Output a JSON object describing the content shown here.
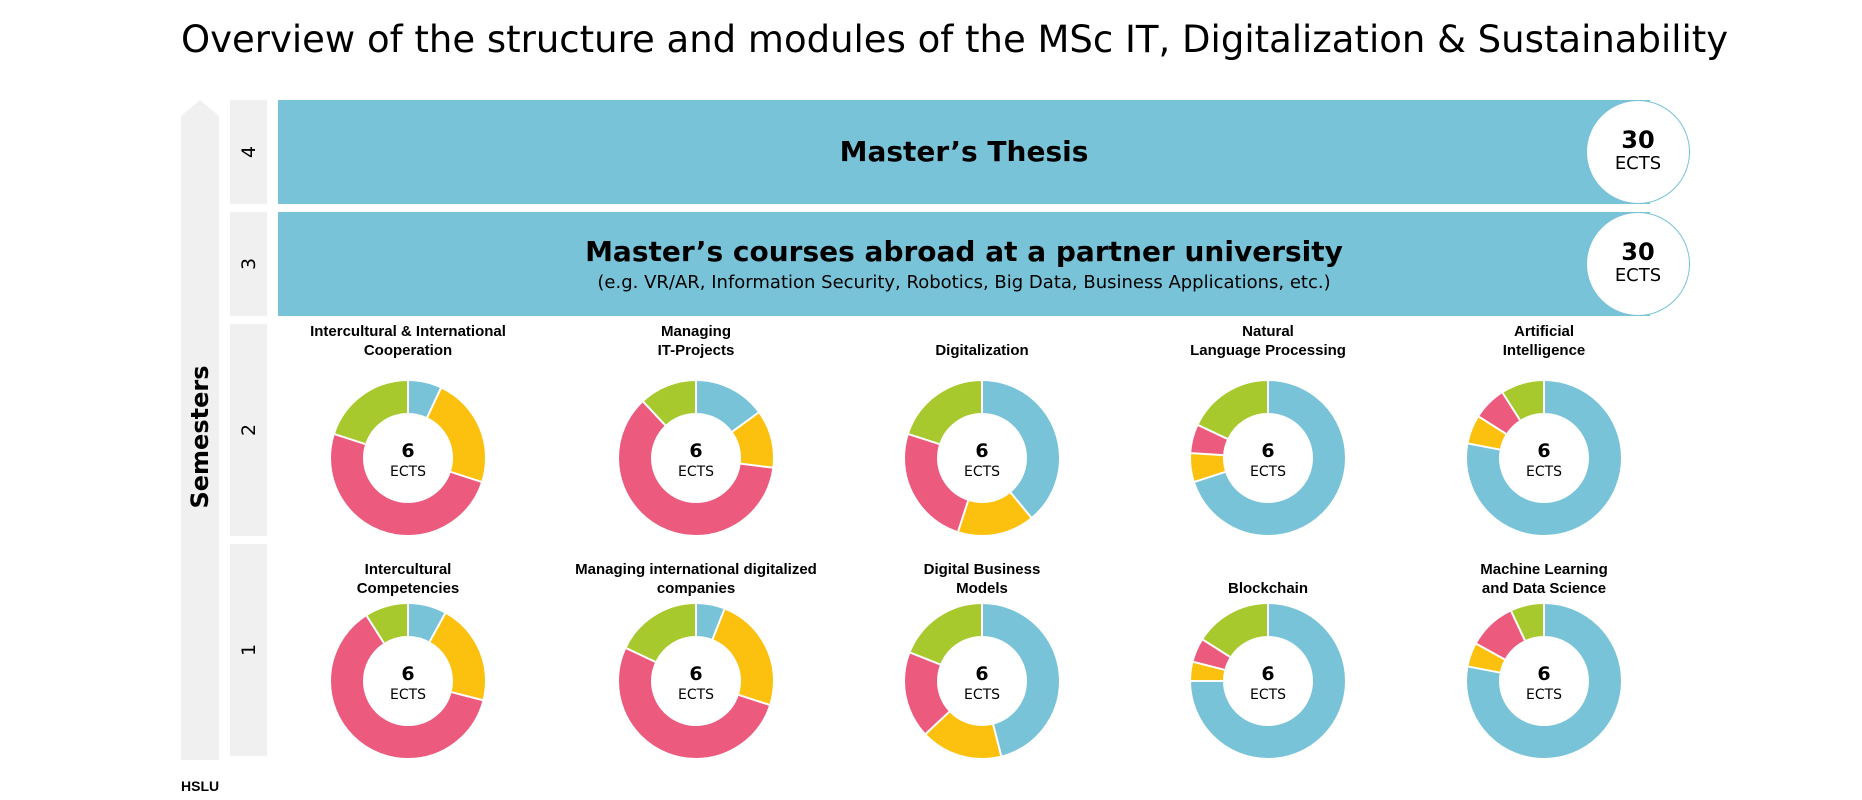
{
  "title": "Overview of the structure and modules of the MSc IT, Digitalization & Sustainability",
  "axis_label": "Semesters",
  "semesters": [
    "4",
    "3",
    "2",
    "1"
  ],
  "thesis": {
    "title": "Master’s Thesis",
    "ects": "30",
    "unit": "ECTS"
  },
  "abroad": {
    "title": "Master’s courses abroad at a partner university",
    "subtitle": "(e.g. VR/AR, Information Security, Robotics, Big Data, Business Applications, etc.)",
    "ects": "30",
    "unit": "ECTS"
  },
  "colors": {
    "blue": "#78c3d8",
    "yellow": "#fcc10f",
    "pink": "#ec5b7d",
    "green": "#a8c92d",
    "track": "#f0f0f0"
  },
  "chart_data": [
    {
      "type": "pie",
      "semester": 2,
      "title": "Intercultural & International\nCooperation",
      "center": "6",
      "unit": "ECTS",
      "segments": [
        {
          "color": "blue",
          "value": 7
        },
        {
          "color": "yellow",
          "value": 23
        },
        {
          "color": "pink",
          "value": 50
        },
        {
          "color": "green",
          "value": 20
        }
      ]
    },
    {
      "type": "pie",
      "semester": 2,
      "title": "Managing\nIT-Projects",
      "center": "6",
      "unit": "ECTS",
      "segments": [
        {
          "color": "blue",
          "value": 15
        },
        {
          "color": "yellow",
          "value": 12
        },
        {
          "color": "pink",
          "value": 61
        },
        {
          "color": "green",
          "value": 12
        }
      ]
    },
    {
      "type": "pie",
      "semester": 2,
      "title": "Digitalization",
      "center": "6",
      "unit": "ECTS",
      "segments": [
        {
          "color": "blue",
          "value": 39
        },
        {
          "color": "yellow",
          "value": 16
        },
        {
          "color": "pink",
          "value": 25
        },
        {
          "color": "green",
          "value": 20
        }
      ]
    },
    {
      "type": "pie",
      "semester": 2,
      "title": "Natural\nLanguage Processing",
      "center": "6",
      "unit": "ECTS",
      "segments": [
        {
          "color": "blue",
          "value": 70
        },
        {
          "color": "yellow",
          "value": 6
        },
        {
          "color": "pink",
          "value": 6
        },
        {
          "color": "green",
          "value": 18
        }
      ]
    },
    {
      "type": "pie",
      "semester": 2,
      "title": "Artificial\nIntelligence",
      "center": "6",
      "unit": "ECTS",
      "segments": [
        {
          "color": "blue",
          "value": 78
        },
        {
          "color": "yellow",
          "value": 6
        },
        {
          "color": "pink",
          "value": 7
        },
        {
          "color": "green",
          "value": 9
        }
      ]
    },
    {
      "type": "pie",
      "semester": 1,
      "title": "Intercultural\nCompetencies",
      "center": "6",
      "unit": "ECTS",
      "segments": [
        {
          "color": "blue",
          "value": 8
        },
        {
          "color": "yellow",
          "value": 21
        },
        {
          "color": "pink",
          "value": 62
        },
        {
          "color": "green",
          "value": 9
        }
      ]
    },
    {
      "type": "pie",
      "semester": 1,
      "title": "Managing international digitalized\ncompanies",
      "center": "6",
      "unit": "ECTS",
      "segments": [
        {
          "color": "blue",
          "value": 6
        },
        {
          "color": "yellow",
          "value": 24
        },
        {
          "color": "pink",
          "value": 52
        },
        {
          "color": "green",
          "value": 18
        }
      ]
    },
    {
      "type": "pie",
      "semester": 1,
      "title": "Digital Business\nModels",
      "center": "6",
      "unit": "ECTS",
      "segments": [
        {
          "color": "blue",
          "value": 46
        },
        {
          "color": "yellow",
          "value": 17
        },
        {
          "color": "pink",
          "value": 18
        },
        {
          "color": "green",
          "value": 19
        }
      ]
    },
    {
      "type": "pie",
      "semester": 1,
      "title": "Blockchain",
      "center": "6",
      "unit": "ECTS",
      "segments": [
        {
          "color": "blue",
          "value": 75
        },
        {
          "color": "yellow",
          "value": 4
        },
        {
          "color": "pink",
          "value": 5
        },
        {
          "color": "green",
          "value": 16
        }
      ]
    },
    {
      "type": "pie",
      "semester": 1,
      "title": "Machine Learning\nand Data Science",
      "center": "6",
      "unit": "ECTS",
      "segments": [
        {
          "color": "blue",
          "value": 78
        },
        {
          "color": "yellow",
          "value": 5
        },
        {
          "color": "pink",
          "value": 10
        },
        {
          "color": "green",
          "value": 7
        }
      ]
    }
  ],
  "footer": {
    "logo": "HSLU"
  }
}
